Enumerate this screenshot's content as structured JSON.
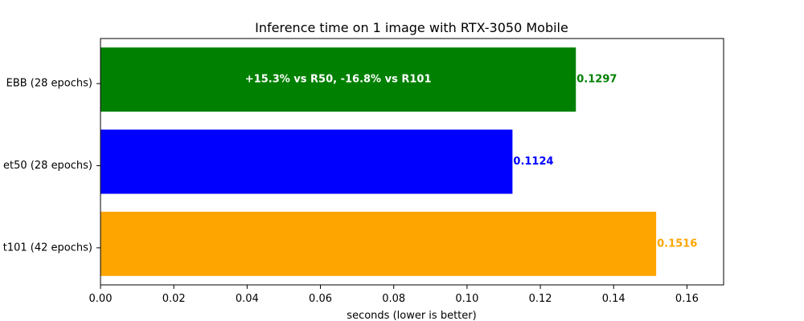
{
  "chart_data": {
    "type": "bar",
    "orientation": "horizontal",
    "title": "Inference time on 1 image with RTX-3050 Mobile",
    "xlabel": "seconds (lower is better)",
    "ylabel": "",
    "xlim": [
      0,
      0.17
    ],
    "xticks": [
      "0.00",
      "0.02",
      "0.04",
      "0.06",
      "0.08",
      "0.10",
      "0.12",
      "0.14",
      "0.16"
    ],
    "xtick_values": [
      0,
      0.02,
      0.04,
      0.06,
      0.08,
      0.1,
      0.12,
      0.14,
      0.16
    ],
    "grid": false,
    "categories": [
      "EBB (28 epochs)",
      "et50 (28 epochs)",
      "t101 (42 epochs)"
    ],
    "values": [
      0.1297,
      0.1124,
      0.1516
    ],
    "value_labels": [
      "0.1297",
      "0.1124",
      "0.1516"
    ],
    "colors": [
      "#008000",
      "#0000ff",
      "#ffa500"
    ],
    "annotations": [
      {
        "category": "EBB (28 epochs)",
        "text": "+15.3% vs R50, -16.8% vs R101"
      }
    ]
  }
}
